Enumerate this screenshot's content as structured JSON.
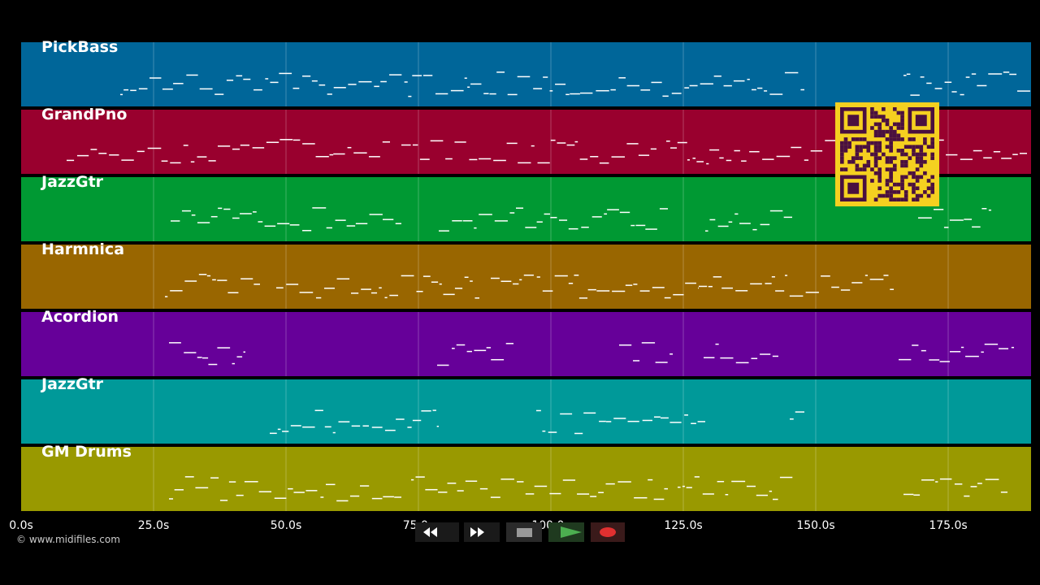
{
  "tracks": [
    {
      "name": "PickBass",
      "color": "#006699"
    },
    {
      "name": "GrandPno",
      "color": "#99002e"
    },
    {
      "name": "JazzGtr",
      "color": "#009933"
    },
    {
      "name": "Harmnica",
      "color": "#996600"
    },
    {
      "name": "Acordion",
      "color": "#660099"
    },
    {
      "name": "JazzGtr",
      "color": "#009999"
    },
    {
      "name": "GM Drums",
      "color": "#999900"
    }
  ],
  "timeline": {
    "ticks": [
      "0.0s",
      "25.0s",
      "50.0s",
      "75.0s",
      "100.0s",
      "125.0s",
      "150.0s",
      "175.0s"
    ]
  },
  "footer": {
    "copyright": "© www.midifiles.com"
  }
}
